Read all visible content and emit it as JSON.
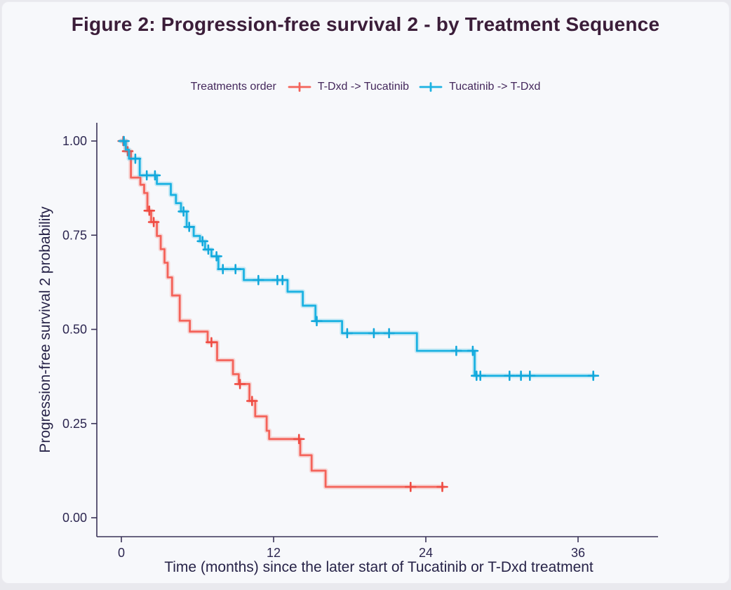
{
  "chart_data": {
    "type": "line",
    "subtype": "kaplan-meier-step-survival",
    "title": "Figure 2: Progression-free survival 2 - by Treatment Sequence",
    "xlabel": "Time (months) since the later start of Tucatinib or T-Dxd treatment",
    "ylabel": "Progression-free survival 2 probability",
    "legend_title": "Treatments order",
    "legend_position": "top",
    "grid": false,
    "xlim": [
      0,
      42.3
    ],
    "ylim": [
      0,
      1
    ],
    "x_ticks": [
      {
        "value": 0,
        "label": "0"
      },
      {
        "value": 12,
        "label": "12"
      },
      {
        "value": 24,
        "label": "24"
      },
      {
        "value": 36,
        "label": "36"
      }
    ],
    "y_ticks": [
      {
        "value": 0.0,
        "label": "0.00"
      },
      {
        "value": 0.25,
        "label": "0.25"
      },
      {
        "value": 0.5,
        "label": "0.50"
      },
      {
        "value": 0.75,
        "label": "0.75"
      },
      {
        "value": 1.0,
        "label": "1.00"
      }
    ],
    "series": [
      {
        "name": "T-Dxd -> Tucatinib",
        "color": "#f4635a",
        "censor_color": "#ef4b42",
        "points": [
          [
            0,
            1.0
          ],
          [
            0.35,
            0.973
          ],
          [
            0.75,
            0.903
          ],
          [
            1.5,
            0.884
          ],
          [
            1.8,
            0.862
          ],
          [
            2.05,
            0.815
          ],
          [
            2.35,
            0.785
          ],
          [
            2.8,
            0.748
          ],
          [
            3.1,
            0.713
          ],
          [
            3.4,
            0.677
          ],
          [
            3.65,
            0.638
          ],
          [
            4.0,
            0.59
          ],
          [
            4.6,
            0.523
          ],
          [
            5.4,
            0.494
          ],
          [
            6.8,
            0.466
          ],
          [
            7.55,
            0.418
          ],
          [
            8.8,
            0.381
          ],
          [
            9.25,
            0.355
          ],
          [
            10.1,
            0.31
          ],
          [
            10.55,
            0.269
          ],
          [
            11.45,
            0.231
          ],
          [
            11.65,
            0.209
          ],
          [
            14.1,
            0.166
          ],
          [
            15.0,
            0.125
          ],
          [
            16.1,
            0.082
          ]
        ],
        "end_time": 25.35,
        "censors": [
          [
            0.15,
            1.0
          ],
          [
            0.5,
            0.973
          ],
          [
            2.2,
            0.815
          ],
          [
            2.55,
            0.785
          ],
          [
            7.1,
            0.466
          ],
          [
            9.35,
            0.355
          ],
          [
            10.3,
            0.31
          ],
          [
            14.0,
            0.209
          ],
          [
            22.8,
            0.082
          ],
          [
            25.3,
            0.082
          ]
        ]
      },
      {
        "name": "Tucatinib -> T-Dxd",
        "color": "#1cb2e2",
        "censor_color": "#12a8dc",
        "points": [
          [
            0,
            1.0
          ],
          [
            0.35,
            0.977
          ],
          [
            0.6,
            0.953
          ],
          [
            1.45,
            0.909
          ],
          [
            2.8,
            0.886
          ],
          [
            3.9,
            0.857
          ],
          [
            4.3,
            0.835
          ],
          [
            4.7,
            0.813
          ],
          [
            5.15,
            0.772
          ],
          [
            5.7,
            0.748
          ],
          [
            6.2,
            0.734
          ],
          [
            6.6,
            0.712
          ],
          [
            7.1,
            0.694
          ],
          [
            7.65,
            0.66
          ],
          [
            9.65,
            0.631
          ],
          [
            13.1,
            0.6
          ],
          [
            14.3,
            0.563
          ],
          [
            15.3,
            0.522
          ],
          [
            17.4,
            0.49
          ],
          [
            23.3,
            0.443
          ],
          [
            27.85,
            0.377
          ]
        ],
        "end_time": 37.25,
        "censors": [
          [
            0.2,
            1.0
          ],
          [
            1.1,
            0.953
          ],
          [
            2.0,
            0.909
          ],
          [
            2.65,
            0.909
          ],
          [
            4.9,
            0.813
          ],
          [
            5.35,
            0.772
          ],
          [
            6.4,
            0.734
          ],
          [
            6.85,
            0.712
          ],
          [
            7.5,
            0.694
          ],
          [
            8.0,
            0.66
          ],
          [
            9.0,
            0.66
          ],
          [
            10.8,
            0.631
          ],
          [
            12.3,
            0.631
          ],
          [
            12.7,
            0.631
          ],
          [
            15.4,
            0.522
          ],
          [
            17.8,
            0.49
          ],
          [
            19.9,
            0.49
          ],
          [
            21.1,
            0.49
          ],
          [
            26.4,
            0.443
          ],
          [
            27.7,
            0.443
          ],
          [
            28.0,
            0.377
          ],
          [
            28.3,
            0.377
          ],
          [
            30.6,
            0.377
          ],
          [
            31.5,
            0.377
          ],
          [
            32.2,
            0.377
          ],
          [
            37.2,
            0.377
          ]
        ]
      }
    ]
  },
  "colors": {
    "background": "#f7f8fb",
    "title_text": "#3b1d39",
    "axis_text": "#2c2650",
    "axis_line": "#3a3358",
    "legend_text": "#44285c",
    "series_red": "#f4635a",
    "series_blue": "#1cb2e2"
  }
}
